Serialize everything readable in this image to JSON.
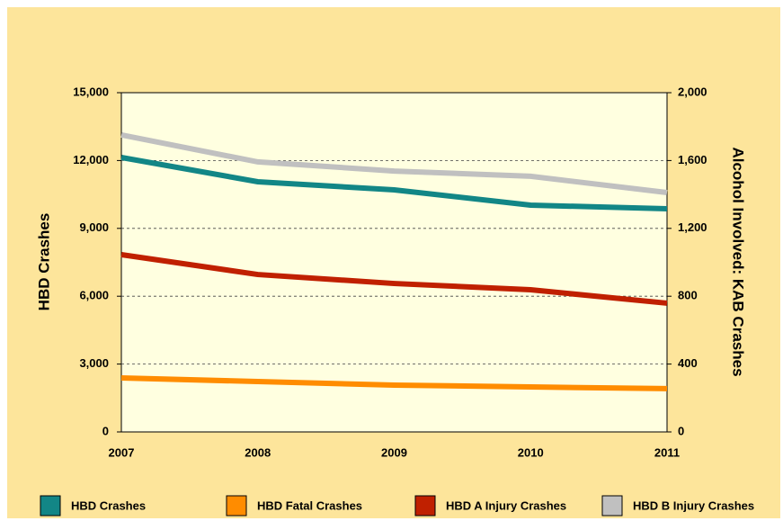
{
  "chart_data": {
    "type": "line",
    "categories": [
      "2007",
      "2008",
      "2009",
      "2010",
      "2011"
    ],
    "y_label": "HBD Crashes",
    "y2_label": "Alcohol Involved: KAB Crashes",
    "ylim": [
      0,
      15000
    ],
    "yticks": [
      0,
      {
        "value": 3000,
        "label": "3,000"
      },
      {
        "value": 6000,
        "label": "6,000"
      },
      {
        "value": 9000,
        "label": "9,000"
      },
      {
        "value": 12000,
        "label": "12,000"
      },
      {
        "value": 15000,
        "label": "15,000"
      }
    ],
    "y2lim": [
      0,
      2000
    ],
    "y2ticks": [
      0,
      400,
      800,
      {
        "value": 1200,
        "label": "1,200"
      },
      {
        "value": 1600,
        "label": "1,600"
      },
      {
        "value": 2000,
        "label": "2,000"
      }
    ],
    "grid": true,
    "series": [
      {
        "name": "HBD Crashes",
        "color": "#128686",
        "values": [
          12135,
          11061,
          10703,
          10027,
          9867
        ]
      },
      {
        "name": "HBD Fatal Crashes",
        "color": "#ff8c00",
        "axis": "y2",
        "values": [
          318,
          297,
          276,
          265,
          255
        ]
      },
      {
        "name": "HBD A Injury Crashes",
        "color": "#c02000",
        "axis": "y2",
        "values": [
          1045,
          928,
          875,
          838,
          759
        ]
      },
      {
        "name": "HBD B Injury Crashes",
        "color": "#c0c0c0",
        "axis": "y2",
        "values": [
          1751,
          1592,
          1538,
          1507,
          1411
        ]
      }
    ]
  }
}
